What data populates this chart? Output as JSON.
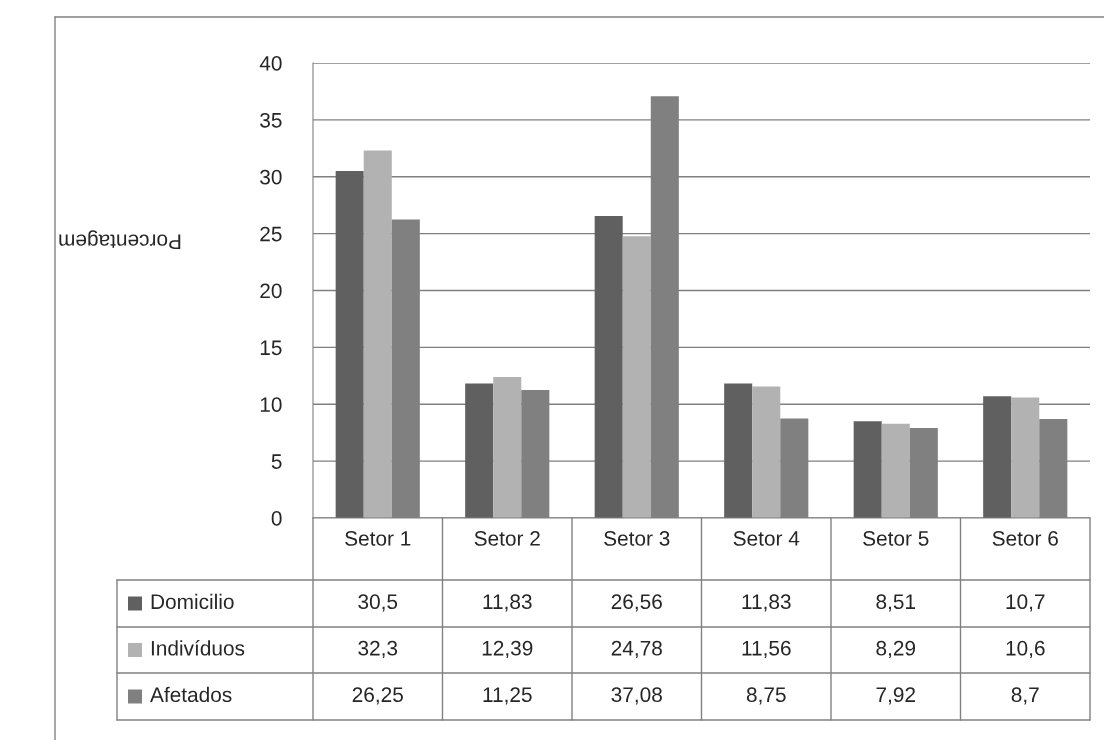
{
  "chart_data": {
    "type": "bar",
    "ylabel": "Porcentagem",
    "categories": [
      "Setor 1",
      "Setor 2",
      "Setor 3",
      "Setor 4",
      "Setor 5",
      "Setor 6"
    ],
    "series": [
      {
        "name": "Domicilio",
        "color": "#606060",
        "values": [
          30.5,
          11.83,
          26.56,
          11.83,
          8.51,
          10.7
        ],
        "value_labels": [
          "30,5",
          "11,83",
          "26,56",
          "11,83",
          "8,51",
          "10,7"
        ]
      },
      {
        "name": "Indivíduos",
        "color": "#b2b2b2",
        "values": [
          32.3,
          12.39,
          24.78,
          11.56,
          8.29,
          10.6
        ],
        "value_labels": [
          "32,3",
          "12,39",
          "24,78",
          "11,56",
          "8,29",
          "10,6"
        ]
      },
      {
        "name": "Afetados",
        "color": "#808080",
        "values": [
          26.25,
          11.25,
          37.08,
          8.75,
          7.92,
          8.7
        ],
        "value_labels": [
          "26,25",
          "11,25",
          "37,08",
          "8,75",
          "7,92",
          "8,7"
        ]
      }
    ],
    "ylim": [
      0,
      40
    ],
    "yticks": [
      0,
      5,
      10,
      15,
      20,
      25,
      30,
      35,
      40
    ],
    "grid": "y",
    "legend": "bottom left"
  }
}
